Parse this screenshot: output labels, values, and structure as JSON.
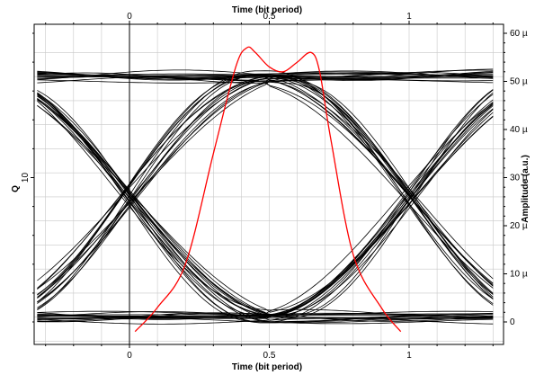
{
  "chart_data": {
    "type": "line",
    "title": "",
    "xlabel_top": "Time (bit period)",
    "xlabel_bottom": "Time (bit period)",
    "ylabel_left": "Q",
    "ylabel_right": "Amplitude (a.u.)",
    "x_top_ticks": [
      "0",
      "0.5",
      "1"
    ],
    "x_bottom_ticks": [
      "0",
      "0.5",
      "1"
    ],
    "y_left_ticks": [
      "10"
    ],
    "y_right_ticks": [
      "60 µ",
      "50 µ",
      "40 µ",
      "30 µ",
      "20 µ",
      "10 µ",
      "0"
    ],
    "xlim": [
      -0.33,
      1.3
    ],
    "ylim_right": [
      -4,
      60
    ],
    "grid": true,
    "series": [
      {
        "kind": "eye-diagram traces",
        "color": "#000000",
        "low_level": 1,
        "high_level": 51,
        "crossings_x": [
          0,
          1
        ],
        "crossing_y": 21
      },
      {
        "kind": "Q-factor curve",
        "color": "#ff0000",
        "x": [
          0.02,
          0.1,
          0.2,
          0.3,
          0.38,
          0.42,
          0.45,
          0.5,
          0.55,
          0.6,
          0.65,
          0.68,
          0.72,
          0.8,
          0.9,
          0.97
        ],
        "y": [
          -2,
          3,
          12,
          35,
          53,
          57,
          56,
          53,
          52,
          54,
          56,
          52,
          38,
          14,
          3,
          -2
        ]
      }
    ]
  }
}
